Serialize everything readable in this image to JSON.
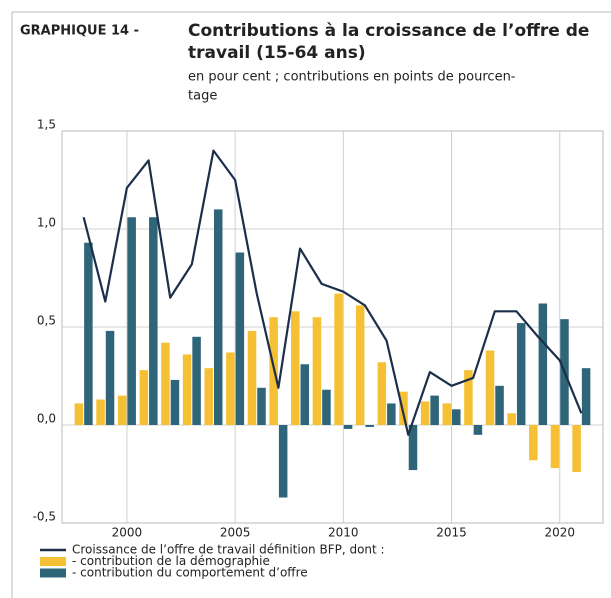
{
  "chart_data": {
    "type": "bar_line",
    "label": "GRAPHIQUE 14 -",
    "title": [
      "Contributions à la croissance de l’offre de",
      "travail (15-64 ans)"
    ],
    "subtitle": [
      "en pour cent ; contributions en points de pourcen-",
      "tage"
    ],
    "x": [
      1998,
      1999,
      2000,
      2001,
      2002,
      2003,
      2004,
      2005,
      2006,
      2007,
      2008,
      2009,
      2010,
      2011,
      2012,
      2013,
      2014,
      2015,
      2016,
      2017,
      2018,
      2019,
      2020,
      2021
    ],
    "series": [
      {
        "name": "Croissance de l’offre de travail définition BFP, dont :",
        "kind": "line",
        "color": "#1c2f4a",
        "values": [
          1.06,
          0.63,
          1.21,
          1.35,
          0.65,
          0.82,
          1.4,
          1.25,
          0.67,
          0.19,
          0.9,
          0.72,
          0.68,
          0.61,
          0.43,
          -0.05,
          0.27,
          0.2,
          0.24,
          0.58,
          0.58,
          0.45,
          0.33,
          0.06
        ]
      },
      {
        "name": "- contribution de la démographie",
        "kind": "bar",
        "color": "#f5c033",
        "values": [
          0.11,
          0.13,
          0.15,
          0.28,
          0.42,
          0.36,
          0.29,
          0.37,
          0.48,
          0.55,
          0.58,
          0.55,
          0.67,
          0.61,
          0.32,
          0.17,
          0.12,
          0.11,
          0.28,
          0.38,
          0.06,
          -0.18,
          -0.22,
          -0.24
        ]
      },
      {
        "name": "- contribution du comportement d’offre",
        "kind": "bar",
        "color": "#2e6579",
        "values": [
          0.93,
          0.48,
          1.06,
          1.06,
          0.23,
          0.45,
          1.1,
          0.88,
          0.19,
          -0.37,
          0.31,
          0.18,
          -0.02,
          -0.01,
          0.11,
          -0.23,
          0.15,
          0.08,
          -0.05,
          0.2,
          0.52,
          0.62,
          0.54,
          0.29
        ]
      }
    ],
    "xlim": [
      1997,
      2022
    ],
    "xticks": [
      2000,
      2005,
      2010,
      2015,
      2020
    ],
    "ylim": [
      -0.5,
      1.5
    ],
    "yticks": [
      {
        "value": -0.5,
        "label": "-0,5"
      },
      {
        "value": 0,
        "label": "0,0"
      },
      {
        "value": 0.5,
        "label": "0,5"
      },
      {
        "value": 1,
        "label": "1,0"
      },
      {
        "value": 1.5,
        "label": "1,5"
      }
    ],
    "grid": true
  }
}
